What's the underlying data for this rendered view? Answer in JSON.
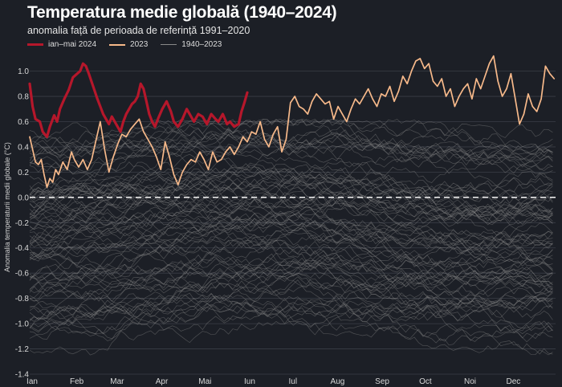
{
  "header": {
    "title": "Temperatura medie globală (1940–2024)",
    "subtitle": "anomalia față de perioada de referință 1991–2020"
  },
  "legend": [
    {
      "label": "ian–mai 2024",
      "color": "#b5172b"
    },
    {
      "label": "2023",
      "color": "#f7b98a"
    },
    {
      "label": "1940–2023",
      "color": "#8a8a8a"
    }
  ],
  "chart_data": {
    "type": "line",
    "title": "Temperatura medie globală (1940–2024)",
    "subtitle": "anomalia față de perioada de referință 1991–2020",
    "xlabel": "",
    "ylabel": "Anomalia temperaturii medii globale (°C)",
    "x_ticks": [
      "Ian",
      "Feb",
      "Mar",
      "Apr",
      "Mai",
      "Iun",
      "Iul",
      "Aug",
      "Sep",
      "Oct",
      "Noi",
      "Dec"
    ],
    "x_tick_days": [
      1,
      32,
      60,
      91,
      121,
      152,
      182,
      213,
      244,
      274,
      305,
      335
    ],
    "xlim": [
      1,
      366
    ],
    "y_ticks": [
      "-1.4",
      "-1.2",
      "-1.0",
      "-0.8",
      "-0.6",
      "-0.4",
      "-0.2",
      "0.0",
      "0.2",
      "0.4",
      "0.6",
      "0.8",
      "1.0"
    ],
    "ylim": [
      -1.4,
      1.15
    ],
    "reference_line": 0,
    "grid": "horizontal",
    "legend_position": "top-left",
    "series": [
      {
        "name": "ian–mai 2024",
        "color": "#b5172b",
        "x": [
          1,
          3,
          5,
          8,
          10,
          13,
          15,
          18,
          20,
          22,
          25,
          28,
          31,
          34,
          36,
          38,
          40,
          42,
          45,
          48,
          50,
          52,
          54,
          56,
          58,
          60,
          62,
          64,
          66,
          68,
          70,
          72,
          74,
          76,
          78,
          80,
          82,
          84,
          86,
          88,
          90,
          93,
          96,
          99,
          101,
          104,
          107,
          110,
          112,
          115,
          118,
          121,
          124,
          127,
          130,
          132,
          135,
          138,
          140,
          143,
          146,
          148,
          150,
          152
        ],
        "y": [
          0.9,
          0.72,
          0.62,
          0.6,
          0.52,
          0.48,
          0.56,
          0.65,
          0.6,
          0.7,
          0.78,
          0.85,
          0.95,
          0.98,
          1.0,
          1.06,
          1.04,
          0.98,
          0.88,
          0.78,
          0.72,
          0.66,
          0.62,
          0.58,
          0.64,
          0.6,
          0.56,
          0.52,
          0.6,
          0.66,
          0.7,
          0.74,
          0.76,
          0.8,
          0.9,
          0.86,
          0.76,
          0.66,
          0.6,
          0.56,
          0.62,
          0.7,
          0.76,
          0.68,
          0.6,
          0.56,
          0.62,
          0.7,
          0.66,
          0.6,
          0.66,
          0.64,
          0.58,
          0.66,
          0.62,
          0.6,
          0.66,
          0.58,
          0.6,
          0.56,
          0.58,
          0.68,
          0.75,
          0.83
        ]
      },
      {
        "name": "2023",
        "color": "#f7b98a",
        "x": [
          1,
          3,
          5,
          7,
          9,
          11,
          13,
          15,
          17,
          19,
          21,
          24,
          27,
          30,
          32,
          35,
          38,
          41,
          44,
          47,
          50,
          53,
          56,
          59,
          62,
          65,
          68,
          71,
          74,
          77,
          80,
          83,
          86,
          89,
          92,
          95,
          98,
          101,
          104,
          107,
          110,
          113,
          116,
          119,
          122,
          125,
          128,
          131,
          134,
          137,
          140,
          143,
          146,
          149,
          152,
          155,
          158,
          161,
          164,
          167,
          170,
          173,
          176,
          179,
          182,
          185,
          188,
          191,
          194,
          197,
          200,
          203,
          206,
          209,
          212,
          215,
          218,
          221,
          224,
          227,
          230,
          233,
          236,
          239,
          242,
          245,
          248,
          251,
          254,
          257,
          260,
          263,
          266,
          269,
          272,
          275,
          278,
          281,
          284,
          287,
          290,
          293,
          296,
          299,
          302,
          305,
          308,
          311,
          314,
          317,
          320,
          323,
          326,
          329,
          332,
          335,
          338,
          341,
          344,
          347,
          350,
          353,
          356,
          359,
          362,
          365
        ],
        "y": [
          0.48,
          0.38,
          0.28,
          0.26,
          0.3,
          0.18,
          0.08,
          0.15,
          0.12,
          0.22,
          0.18,
          0.28,
          0.22,
          0.36,
          0.3,
          0.24,
          0.3,
          0.22,
          0.3,
          0.45,
          0.6,
          0.38,
          0.2,
          0.32,
          0.42,
          0.5,
          0.48,
          0.54,
          0.58,
          0.62,
          0.52,
          0.46,
          0.4,
          0.32,
          0.22,
          0.44,
          0.32,
          0.18,
          0.1,
          0.2,
          0.26,
          0.3,
          0.28,
          0.36,
          0.3,
          0.22,
          0.36,
          0.28,
          0.3,
          0.36,
          0.4,
          0.34,
          0.4,
          0.48,
          0.44,
          0.52,
          0.5,
          0.6,
          0.46,
          0.4,
          0.5,
          0.56,
          0.36,
          0.46,
          0.75,
          0.8,
          0.72,
          0.7,
          0.66,
          0.76,
          0.82,
          0.78,
          0.74,
          0.76,
          0.62,
          0.72,
          0.66,
          0.6,
          0.7,
          0.78,
          0.74,
          0.8,
          0.86,
          0.78,
          0.72,
          0.82,
          0.8,
          0.88,
          0.76,
          0.84,
          0.96,
          0.9,
          1.0,
          1.08,
          1.1,
          1.02,
          1.06,
          0.92,
          0.88,
          0.94,
          0.8,
          0.86,
          0.72,
          0.8,
          0.86,
          0.9,
          0.78,
          0.94,
          0.86,
          0.96,
          1.06,
          1.12,
          0.92,
          0.8,
          0.86,
          0.98,
          0.78,
          0.58,
          0.66,
          0.82,
          0.72,
          0.68,
          0.78,
          1.04,
          0.98,
          0.94
        ]
      }
    ],
    "background_years": {
      "name": "1940–2023",
      "color": "#8a8a8a",
      "approx_range": [
        -1.25,
        0.62
      ]
    }
  }
}
